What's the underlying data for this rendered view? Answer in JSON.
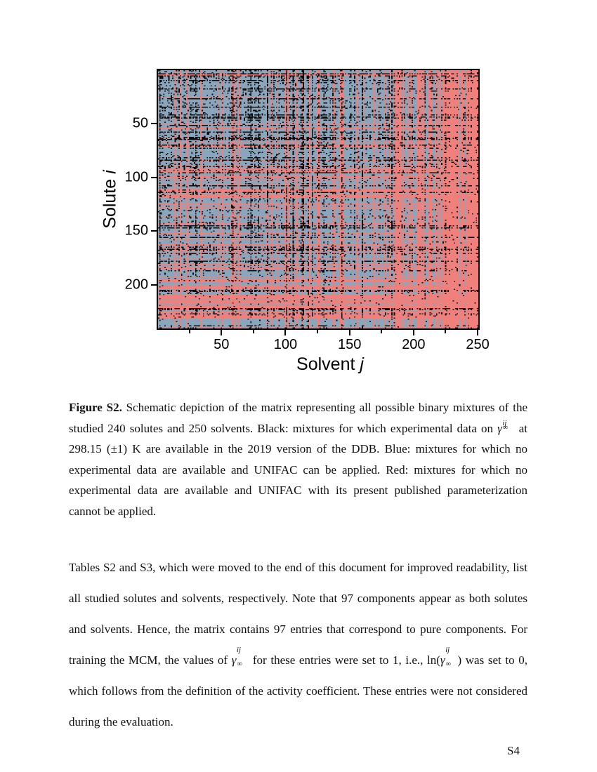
{
  "page": {
    "number": "S4"
  },
  "chart_data": {
    "type": "heatmap",
    "title": "",
    "xlabel": {
      "text": "Solvent",
      "var": "j"
    },
    "ylabel": {
      "text": "Solute",
      "var": "i"
    },
    "n_rows": 240,
    "n_cols": 250,
    "x_range": [
      1,
      250
    ],
    "y_range": [
      1,
      240
    ],
    "x_ticks": [
      50,
      100,
      150,
      200,
      250
    ],
    "x_minor_ticks": [
      25,
      75,
      125,
      175,
      225
    ],
    "y_ticks": [
      50,
      100,
      150,
      200
    ],
    "grid": false,
    "legend_position": "none",
    "colors": {
      "blue": "#8aa6bc",
      "red": "#f0807c",
      "black": "#0b0b0b"
    },
    "classes": [
      {
        "color_name": "Black",
        "color": "#0b0b0b",
        "meaning": "mixtures for which experimental data on gamma_ij_inf at 298.15 (±1) K are available in the 2019 version of the DDB"
      },
      {
        "color_name": "Blue",
        "color": "#8aa6bc",
        "meaning": "mixtures for which no experimental data are available and UNIFAC can be applied"
      },
      {
        "color_name": "Red",
        "color": "#f0807c",
        "meaning": "mixtures for which no experimental data are available and UNIFAC with its present published parameterization cannot be applied"
      }
    ],
    "seed": 1337,
    "dense_rows": [
      18,
      27,
      35,
      44,
      45,
      52,
      58,
      64,
      70,
      84,
      96,
      108,
      145,
      147,
      167,
      178,
      205,
      222
    ],
    "dense_cols": [
      2,
      73,
      101,
      106,
      114,
      121,
      160
    ]
  },
  "caption": {
    "segments": [
      {
        "bold": true,
        "text": "Figure S2."
      },
      {
        "text": " Schematic depiction of the matrix representing all possible binary mixtures of the studied 240 solutes and 250 solvents. Black: mixtures for which experimental data on "
      },
      {
        "gamma": {
          "base": "γ",
          "sup": "∞",
          "sub": "ij"
        }
      },
      {
        "text": " at 298.15 (±1) K are available in the 2019 version of the DDB. Blue: mixtures for which no experimental data are available and UNIFAC can be applied. Red: mixtures for which no experimental data are available and UNIFAC with its present published parameterization cannot be applied."
      }
    ]
  },
  "body": {
    "segments": [
      {
        "text": "Tables S2 and S3, which were moved to the end of this document for improved readability, list all studied solutes and solvents, respectively. Note that 97 components appear as both solutes and solvents. Hence, the matrix contains 97 entries that correspond to pure components. For training the MCM, the values of "
      },
      {
        "gamma": {
          "base": "γ",
          "sup": "∞",
          "sub": "ij"
        }
      },
      {
        "text": " for these entries were set to 1, i.e., "
      },
      {
        "text": "ln("
      },
      {
        "gamma": {
          "base": "γ",
          "sup": "∞",
          "sub": "ij"
        }
      },
      {
        "text": ") was set to 0, which follows from the definition of the activity coefficient. These entries were not considered during the evaluation."
      }
    ]
  }
}
